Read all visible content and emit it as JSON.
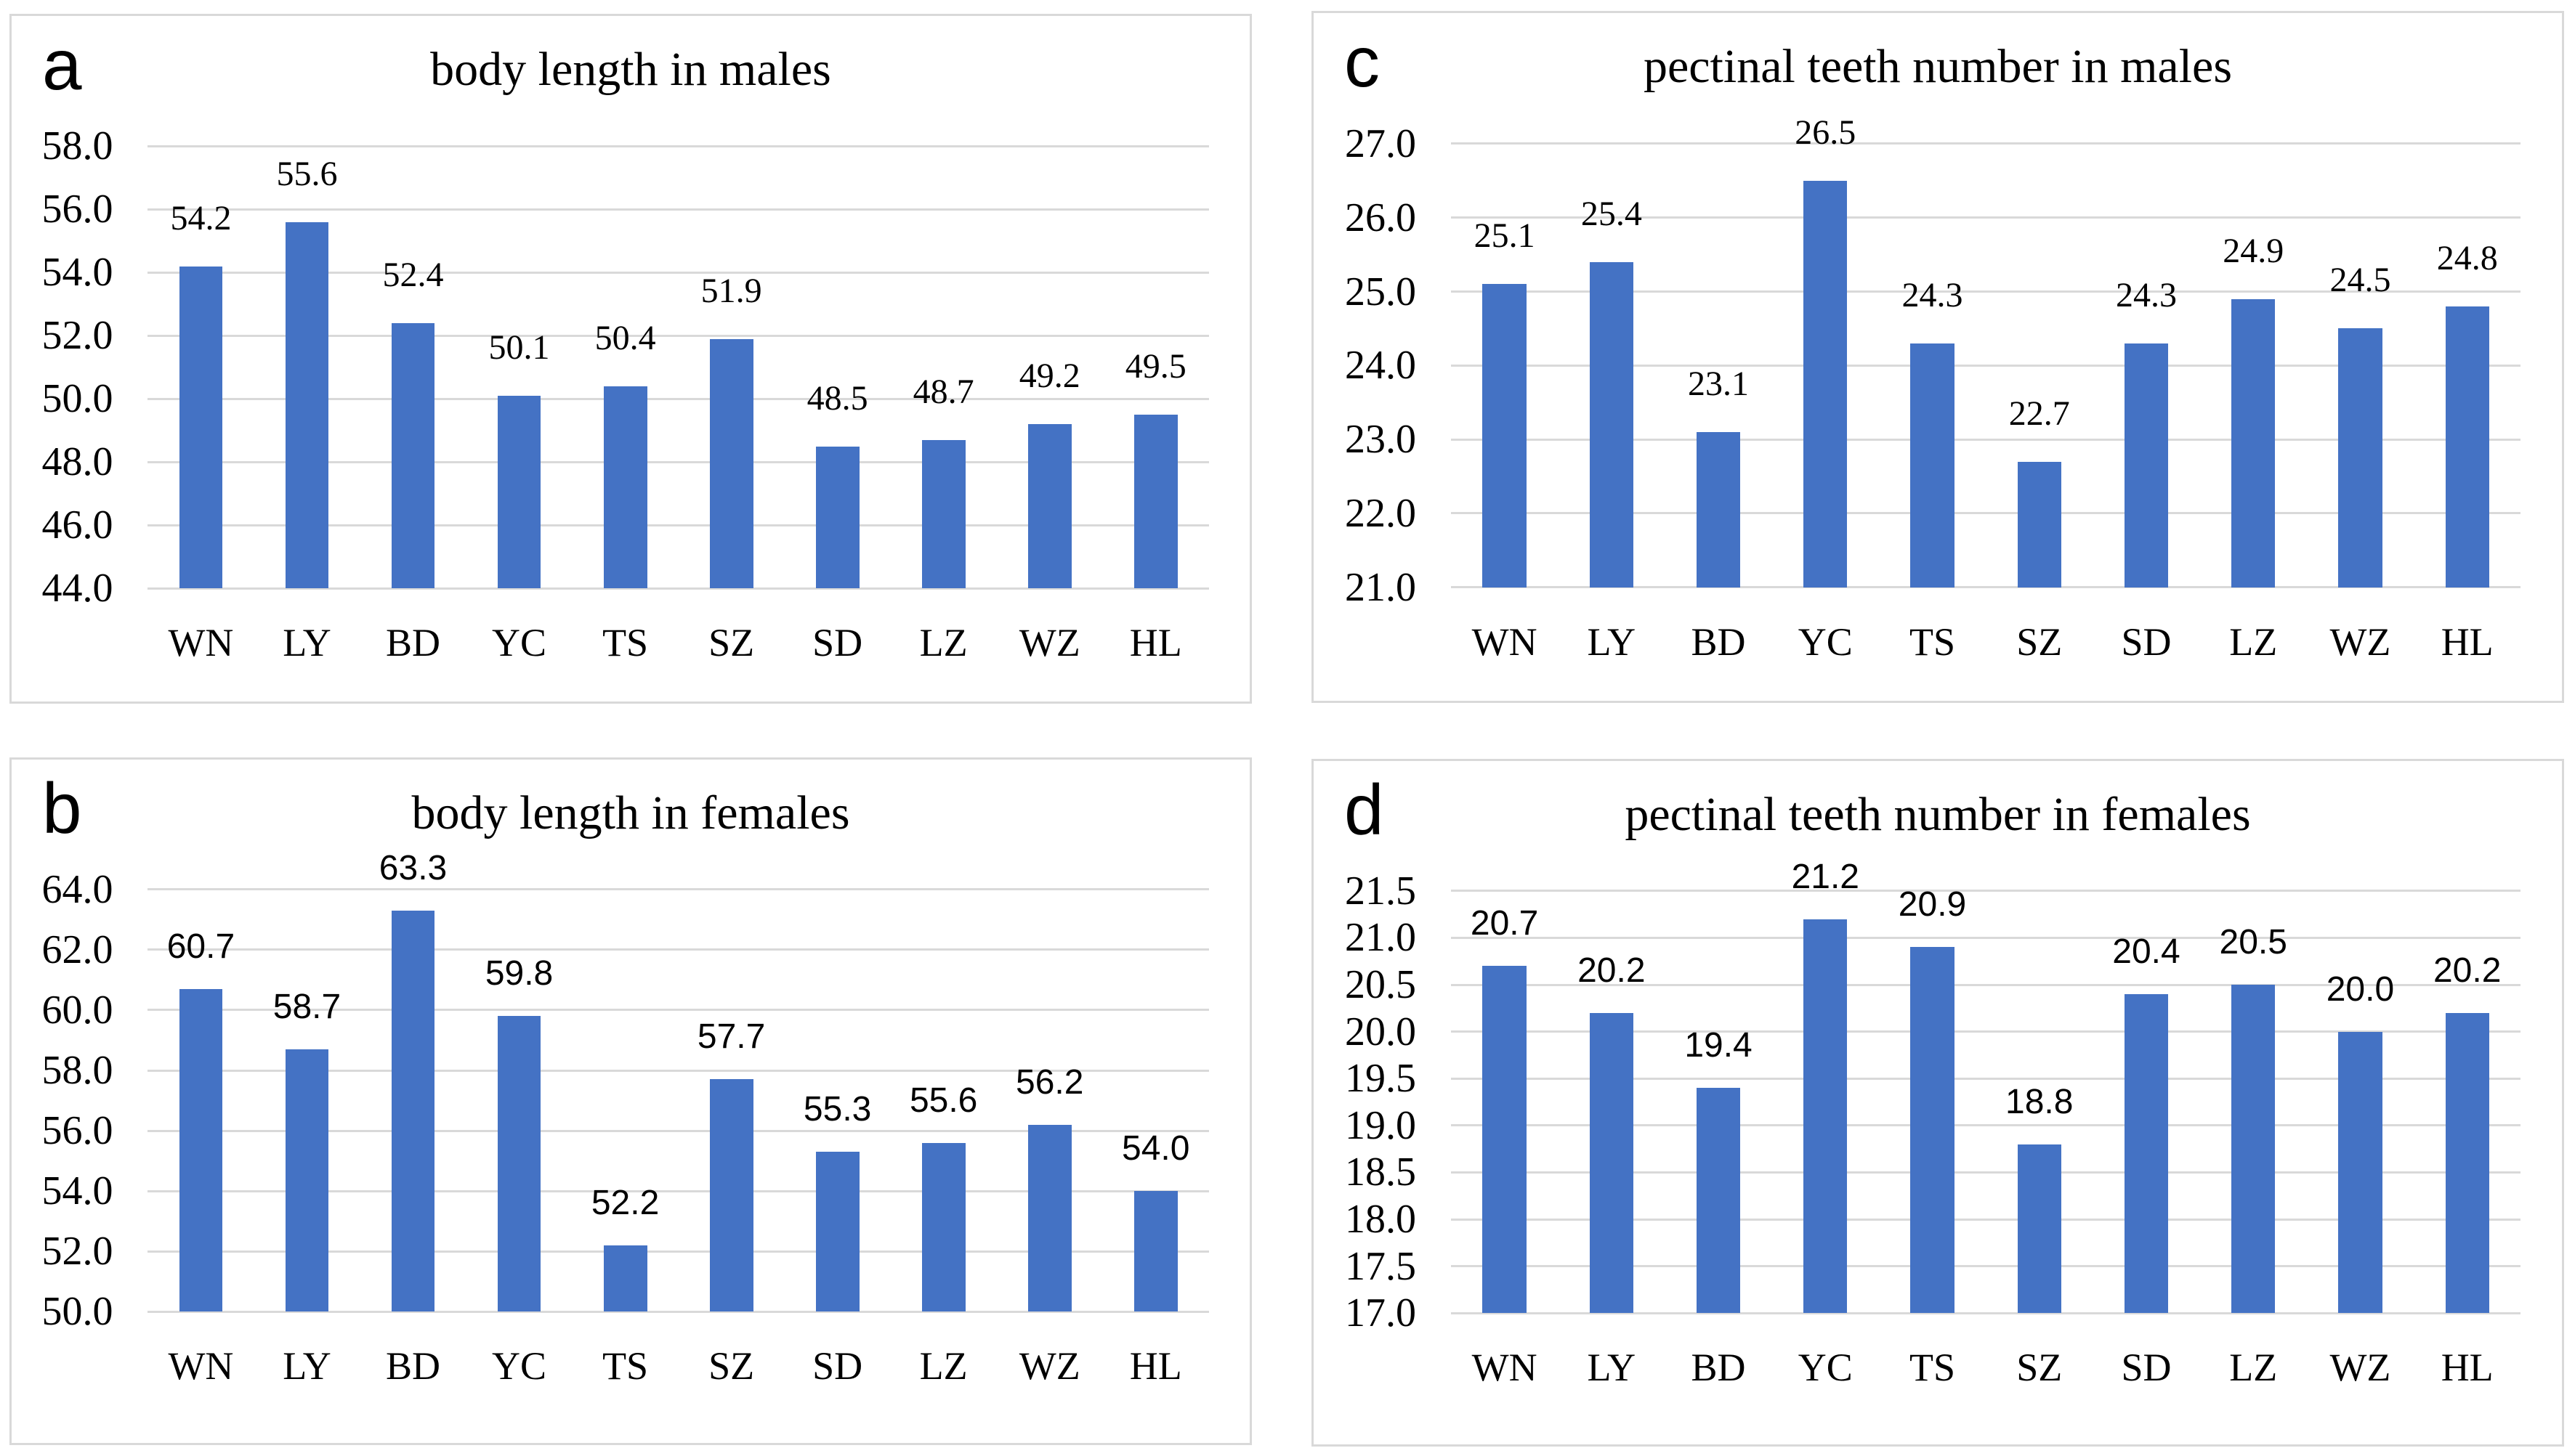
{
  "figure": {
    "background_color": "#ffffff",
    "panel_border_color": "#d9d9d9",
    "gridline_color": "#d9d9d9",
    "bar_color": "#4472c4",
    "text_color": "#000000"
  },
  "chart_data": [
    {
      "id": "a",
      "panel_letter": "a",
      "type": "bar",
      "title": "body length in males",
      "categories": [
        "WN",
        "LY",
        "BD",
        "YC",
        "TS",
        "SZ",
        "SD",
        "LZ",
        "WZ",
        "HL"
      ],
      "values": [
        54.2,
        55.6,
        52.4,
        50.1,
        50.4,
        51.9,
        48.5,
        48.7,
        49.2,
        49.5
      ],
      "value_labels": [
        "54.2",
        "55.6",
        "52.4",
        "50.1",
        "50.4",
        "51.9",
        "48.5",
        "48.7",
        "49.2",
        "49.5"
      ],
      "ylim": [
        44.0,
        58.0
      ],
      "ystep": 2.0,
      "y_ticks": [
        "58.0",
        "56.0",
        "54.0",
        "52.0",
        "50.0",
        "48.0",
        "46.0",
        "44.0"
      ],
      "grid": true,
      "legend": "none",
      "xlabel": "",
      "ylabel": ""
    },
    {
      "id": "b",
      "panel_letter": "b",
      "type": "bar",
      "title": "body length in females",
      "categories": [
        "WN",
        "LY",
        "BD",
        "YC",
        "TS",
        "SZ",
        "SD",
        "LZ",
        "WZ",
        "HL"
      ],
      "values": [
        60.7,
        58.7,
        63.3,
        59.8,
        52.2,
        57.7,
        55.3,
        55.6,
        56.2,
        54.0
      ],
      "value_labels": [
        "60.7",
        "58.7",
        "63.3",
        "59.8",
        "52.2",
        "57.7",
        "55.3",
        "55.6",
        "56.2",
        "54.0"
      ],
      "ylim": [
        50.0,
        64.0
      ],
      "ystep": 2.0,
      "y_ticks": [
        "64.0",
        "62.0",
        "60.0",
        "58.0",
        "56.0",
        "54.0",
        "52.0",
        "50.0"
      ],
      "grid": true,
      "legend": "none",
      "xlabel": "",
      "ylabel": ""
    },
    {
      "id": "c",
      "panel_letter": "c",
      "type": "bar",
      "title": "pectinal teeth number in males",
      "categories": [
        "WN",
        "LY",
        "BD",
        "YC",
        "TS",
        "SZ",
        "SD",
        "LZ",
        "WZ",
        "HL"
      ],
      "values": [
        25.1,
        25.4,
        23.1,
        26.5,
        24.3,
        22.7,
        24.3,
        24.9,
        24.5,
        24.8
      ],
      "value_labels": [
        "25.1",
        "25.4",
        "23.1",
        "26.5",
        "24.3",
        "22.7",
        "24.3",
        "24.9",
        "24.5",
        "24.8"
      ],
      "ylim": [
        21.0,
        27.0
      ],
      "ystep": 1.0,
      "y_ticks": [
        "27.0",
        "26.0",
        "25.0",
        "24.0",
        "23.0",
        "22.0",
        "21.0"
      ],
      "grid": true,
      "legend": "none",
      "xlabel": "",
      "ylabel": ""
    },
    {
      "id": "d",
      "panel_letter": "d",
      "type": "bar",
      "title": "pectinal teeth number in females",
      "categories": [
        "WN",
        "LY",
        "BD",
        "YC",
        "TS",
        "SZ",
        "SD",
        "LZ",
        "WZ",
        "HL"
      ],
      "values": [
        20.7,
        20.2,
        19.4,
        21.2,
        20.9,
        18.8,
        20.4,
        20.5,
        20.0,
        20.2
      ],
      "value_labels": [
        "20.7",
        "20.2",
        "19.4",
        "21.2",
        "20.9",
        "18.8",
        "20.4",
        "20.5",
        "20.0",
        "20.2"
      ],
      "ylim": [
        17.0,
        21.5
      ],
      "ystep": 0.5,
      "y_ticks": [
        "21.5",
        "21.0",
        "20.5",
        "20.0",
        "19.5",
        "19.0",
        "18.5",
        "18.0",
        "17.5",
        "17.0"
      ],
      "grid": true,
      "legend": "none",
      "xlabel": "",
      "ylabel": ""
    }
  ]
}
